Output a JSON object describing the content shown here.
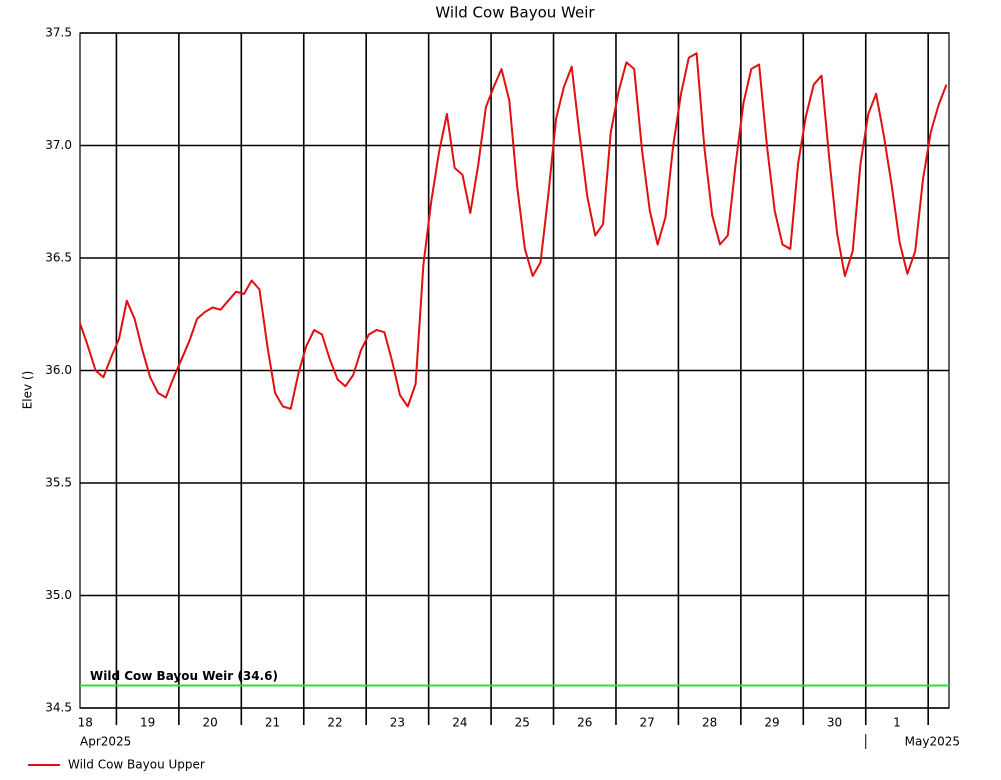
{
  "chart_data": {
    "type": "line",
    "title": "Wild Cow Bayou Weir",
    "y_label": "Elev ()",
    "xlim": [
      "2025-04-18T10:00",
      "2025-05-02T08:00"
    ],
    "ylim": [
      34.5,
      37.5
    ],
    "yticks": [
      {
        "value": 34.5,
        "label": "34.5"
      },
      {
        "value": 35,
        "label": "35.0"
      },
      {
        "value": 35.5,
        "label": "35.5"
      },
      {
        "value": 36,
        "label": "36.0"
      },
      {
        "value": 36.5,
        "label": "36.5"
      },
      {
        "value": 37,
        "label": "37.0"
      },
      {
        "value": 37.5,
        "label": "37.5"
      }
    ],
    "xticks": [
      "2025-04-19T00:00",
      "2025-04-20T00:00",
      "2025-04-21T00:00",
      "2025-04-22T00:00",
      "2025-04-23T00:00",
      "2025-04-24T00:00",
      "2025-04-25T00:00",
      "2025-04-26T00:00",
      "2025-04-27T00:00",
      "2025-04-28T00:00",
      "2025-04-29T00:00",
      "2025-04-30T00:00",
      "2025-05-01T00:00",
      "2025-05-02T00:00"
    ],
    "xtick_labels": [
      {
        "value": "2025-04-18T12:00",
        "label": "18"
      },
      {
        "value": "2025-04-19T12:00",
        "label": "19"
      },
      {
        "value": "2025-04-20T12:00",
        "label": "20"
      },
      {
        "value": "2025-04-21T12:00",
        "label": "21"
      },
      {
        "value": "2025-04-22T12:00",
        "label": "22"
      },
      {
        "value": "2025-04-23T12:00",
        "label": "23"
      },
      {
        "value": "2025-04-24T12:00",
        "label": "24"
      },
      {
        "value": "2025-04-25T12:00",
        "label": "25"
      },
      {
        "value": "2025-04-26T12:00",
        "label": "26"
      },
      {
        "value": "2025-04-27T12:00",
        "label": "27"
      },
      {
        "value": "2025-04-28T12:00",
        "label": "28"
      },
      {
        "value": "2025-04-29T12:00",
        "label": "29"
      },
      {
        "value": "2025-04-30T12:00",
        "label": "30"
      },
      {
        "value": "2025-05-01T12:00",
        "label": "1"
      }
    ],
    "month_labels": [
      {
        "value": "2025-04-18T10:00",
        "label": "Apr2025"
      },
      {
        "value": "2025-05-01T00:00",
        "label": "May2025"
      }
    ],
    "grid": true,
    "reference_line": {
      "text": "Wild Cow Bayou Weir (34.6)",
      "value": 34.6,
      "color": "#33dd33"
    },
    "x": [
      "2025-04-18T10:00",
      "2025-04-18T13:00",
      "2025-04-18T16:00",
      "2025-04-18T19:00",
      "2025-04-18T22:00",
      "2025-04-19T01:00",
      "2025-04-19T04:00",
      "2025-04-19T07:00",
      "2025-04-19T10:00",
      "2025-04-19T13:00",
      "2025-04-19T16:00",
      "2025-04-19T19:00",
      "2025-04-19T22:00",
      "2025-04-20T01:00",
      "2025-04-20T04:00",
      "2025-04-20T07:00",
      "2025-04-20T10:00",
      "2025-04-20T13:00",
      "2025-04-20T16:00",
      "2025-04-20T19:00",
      "2025-04-20T22:00",
      "2025-04-21T01:00",
      "2025-04-21T04:00",
      "2025-04-21T07:00",
      "2025-04-21T10:00",
      "2025-04-21T13:00",
      "2025-04-21T16:00",
      "2025-04-21T19:00",
      "2025-04-21T22:00",
      "2025-04-22T01:00",
      "2025-04-22T04:00",
      "2025-04-22T07:00",
      "2025-04-22T10:00",
      "2025-04-22T13:00",
      "2025-04-22T16:00",
      "2025-04-22T19:00",
      "2025-04-22T22:00",
      "2025-04-23T01:00",
      "2025-04-23T04:00",
      "2025-04-23T07:00",
      "2025-04-23T10:00",
      "2025-04-23T13:00",
      "2025-04-23T16:00",
      "2025-04-23T19:00",
      "2025-04-23T22:00",
      "2025-04-24T01:00",
      "2025-04-24T04:00",
      "2025-04-24T07:00",
      "2025-04-24T10:00",
      "2025-04-24T13:00",
      "2025-04-24T16:00",
      "2025-04-24T19:00",
      "2025-04-24T22:00",
      "2025-04-25T01:00",
      "2025-04-25T04:00",
      "2025-04-25T07:00",
      "2025-04-25T10:00",
      "2025-04-25T13:00",
      "2025-04-25T16:00",
      "2025-04-25T19:00",
      "2025-04-25T22:00",
      "2025-04-26T01:00",
      "2025-04-26T04:00",
      "2025-04-26T07:00",
      "2025-04-26T10:00",
      "2025-04-26T13:00",
      "2025-04-26T16:00",
      "2025-04-26T19:00",
      "2025-04-26T22:00",
      "2025-04-27T01:00",
      "2025-04-27T04:00",
      "2025-04-27T07:00",
      "2025-04-27T10:00",
      "2025-04-27T13:00",
      "2025-04-27T16:00",
      "2025-04-27T19:00",
      "2025-04-27T22:00",
      "2025-04-28T01:00",
      "2025-04-28T04:00",
      "2025-04-28T07:00",
      "2025-04-28T10:00",
      "2025-04-28T13:00",
      "2025-04-28T16:00",
      "2025-04-28T19:00",
      "2025-04-28T22:00",
      "2025-04-29T01:00",
      "2025-04-29T04:00",
      "2025-04-29T07:00",
      "2025-04-29T10:00",
      "2025-04-29T13:00",
      "2025-04-29T16:00",
      "2025-04-29T19:00",
      "2025-04-29T22:00",
      "2025-04-30T01:00",
      "2025-04-30T04:00",
      "2025-04-30T07:00",
      "2025-04-30T10:00",
      "2025-04-30T13:00",
      "2025-04-30T16:00",
      "2025-04-30T19:00",
      "2025-04-30T22:00",
      "2025-05-01T01:00",
      "2025-05-01T04:00",
      "2025-05-01T07:00",
      "2025-05-01T10:00",
      "2025-05-01T13:00",
      "2025-05-01T16:00",
      "2025-05-01T19:00",
      "2025-05-01T22:00",
      "2025-05-02T01:00",
      "2025-05-02T04:00",
      "2025-05-02T07:00"
    ],
    "series": [
      {
        "name": "Wild Cow Bayou Upper",
        "color": "#e01010",
        "values": [
          36.21,
          36.11,
          36.0,
          35.97,
          36.06,
          36.14,
          36.31,
          36.23,
          36.09,
          35.97,
          35.9,
          35.88,
          35.97,
          36.05,
          36.13,
          36.23,
          36.26,
          36.28,
          36.27,
          36.31,
          36.35,
          36.34,
          36.4,
          36.36,
          36.11,
          35.9,
          35.84,
          35.83,
          35.99,
          36.11,
          36.18,
          36.16,
          36.05,
          35.96,
          35.93,
          35.98,
          36.09,
          36.16,
          36.18,
          36.17,
          36.04,
          35.89,
          35.84,
          35.94,
          36.47,
          36.75,
          36.97,
          37.14,
          36.9,
          36.87,
          36.7,
          36.91,
          37.17,
          37.26,
          37.34,
          37.2,
          36.82,
          36.54,
          36.42,
          36.48,
          36.78,
          37.12,
          37.26,
          37.35,
          37.05,
          36.77,
          36.6,
          36.65,
          37.06,
          37.24,
          37.37,
          37.34,
          36.98,
          36.71,
          36.56,
          36.68,
          37.0,
          37.23,
          37.39,
          37.41,
          36.99,
          36.69,
          36.56,
          36.6,
          36.92,
          37.19,
          37.34,
          37.36,
          37.0,
          36.71,
          36.56,
          36.54,
          36.92,
          37.13,
          37.27,
          37.31,
          36.94,
          36.61,
          36.42,
          36.53,
          36.92,
          37.14,
          37.23,
          37.04,
          36.82,
          36.57,
          36.43,
          36.53,
          36.85,
          37.06,
          37.18,
          37.27
        ]
      }
    ]
  }
}
